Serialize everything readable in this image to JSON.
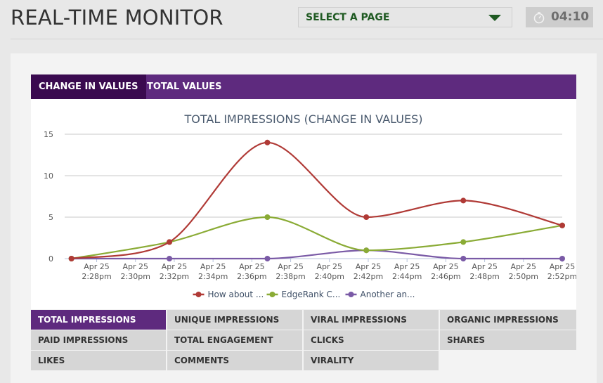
{
  "header": {
    "title": "REAL-TIME MONITOR",
    "select_label": "SELECT A PAGE",
    "timer": "04:10"
  },
  "tabs": [
    {
      "label": "CHANGE IN VALUES",
      "active": true
    },
    {
      "label": "TOTAL VALUES",
      "active": false
    }
  ],
  "metrics": [
    {
      "label": "TOTAL IMPRESSIONS",
      "active": true
    },
    {
      "label": "UNIQUE IMPRESSIONS",
      "active": false
    },
    {
      "label": "VIRAL IMPRESSIONS",
      "active": false
    },
    {
      "label": "ORGANIC IMPRESSIONS",
      "active": false
    },
    {
      "label": "PAID IMPRESSIONS",
      "active": false
    },
    {
      "label": "TOTAL ENGAGEMENT",
      "active": false
    },
    {
      "label": "CLICKS",
      "active": false
    },
    {
      "label": "SHARES",
      "active": false
    },
    {
      "label": "LIKES",
      "active": false
    },
    {
      "label": "COMMENTS",
      "active": false
    },
    {
      "label": "VIRALITY",
      "active": false
    }
  ],
  "colors": {
    "accent": "#5e2a7e",
    "accent_dark": "#3a0a4f",
    "select_text": "#1f5a22"
  },
  "chart_data": {
    "type": "line",
    "title": "TOTAL IMPRESSIONS (CHANGE IN VALUES)",
    "xlabel": "",
    "ylabel": "",
    "ylim": [
      0,
      15
    ],
    "yticks": [
      0,
      5,
      10,
      15
    ],
    "xlim_minutes": [
      26.35,
      52
    ],
    "x_minutes": [
      26.7,
      31.75,
      36.8,
      41.9,
      46.9,
      52
    ],
    "xtick_minutes": [
      28,
      30,
      32,
      34,
      36,
      38,
      40,
      42,
      44,
      46,
      48,
      50,
      52
    ],
    "xtick_labels": [
      [
        "Apr 25",
        "2:28pm"
      ],
      [
        "Apr 25",
        "2:30pm"
      ],
      [
        "Apr 25",
        "2:32pm"
      ],
      [
        "Apr 25",
        "2:34pm"
      ],
      [
        "Apr 25",
        "2:36pm"
      ],
      [
        "Apr 25",
        "2:38pm"
      ],
      [
        "Apr 25",
        "2:40pm"
      ],
      [
        "Apr 25",
        "2:42pm"
      ],
      [
        "Apr 25",
        "2:44pm"
      ],
      [
        "Apr 25",
        "2:46pm"
      ],
      [
        "Apr 25",
        "2:48pm"
      ],
      [
        "Apr 25",
        "2:50pm"
      ],
      [
        "Apr 25",
        "2:52pm"
      ]
    ],
    "grid": true,
    "legend": "bottom-center",
    "series": [
      {
        "name": "How about ...",
        "color": "#b03a36",
        "values": [
          0,
          2,
          14,
          5,
          7,
          4
        ]
      },
      {
        "name": "EdgeRank C...",
        "color": "#8aab35",
        "values": [
          0,
          2,
          5,
          1,
          2,
          4
        ]
      },
      {
        "name": "Another an...",
        "color": "#7a5aa6",
        "values": [
          0,
          0,
          0,
          1,
          0,
          0
        ]
      }
    ]
  }
}
